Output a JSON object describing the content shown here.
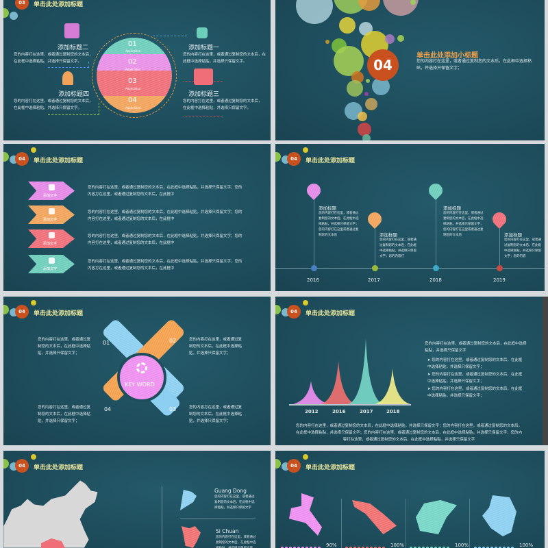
{
  "colors": {
    "bg": "#1e4d5c",
    "badge": "#c9501f",
    "title": "#e9e59b",
    "pink": "#ee8ff0",
    "orange": "#f4a04c",
    "red": "#f07070",
    "teal": "#76d6c6",
    "blue": "#8ccff0",
    "yellow": "#f3ee8a"
  },
  "header_title": "单击此处添加标题",
  "slide1": {
    "badge": "03",
    "bands": [
      {
        "num": "01",
        "sub": "Application"
      },
      {
        "num": "02",
        "sub": "Application"
      },
      {
        "num": "03",
        "sub": "Application"
      },
      {
        "num": "04",
        "sub": "Application"
      }
    ],
    "items": [
      {
        "title": "添加标题一",
        "icon": "people-exchange-icon"
      },
      {
        "title": "添加标题二",
        "icon": "presentation-icon"
      },
      {
        "title": "添加标题三",
        "icon": "computer-icon"
      },
      {
        "title": "添加标题四",
        "icon": "head-idea-icon"
      }
    ],
    "body": "您的内容打在这里，或者通过复制您的文本后，在此框中选择粘贴，并选择只保留文字。"
  },
  "slide2": {
    "badge": "04",
    "subtitle": "单击此处添加小标题",
    "body": "您的内容打在这里，或者通过复制您的文本后，在此框中选择粘贴，并选择只保留文字；"
  },
  "slide3": {
    "badge": "04",
    "arrows": [
      {
        "label": "添加文字",
        "icon": "android-icon"
      },
      {
        "label": "添加文字",
        "icon": "user-card-icon"
      },
      {
        "label": "添加文字",
        "icon": "monitor-icon"
      },
      {
        "label": "添加文字",
        "icon": "devices-icon"
      }
    ],
    "body": "您的内容打在这里，或者通过复制您的文本后，在此框中选择粘贴，并选择只保留文字；您的内容打在这里，或者通过复制您的文本后，在此框中"
  },
  "slide4": {
    "badge": "04",
    "events": [
      {
        "year": "2016",
        "title": "添加标题",
        "body": "您的内容打在这里，或者通过复制您的文本后，在此框中选择粘贴，并选择只保留文字；您的内容打在这里或者通过复制您的文本后",
        "icon": "list-icon"
      },
      {
        "year": "2017",
        "title": "添加标题",
        "body": "您的内容打在这里，或者通过复制您的文本后，在此框中选择粘贴，并选择只保留文字；您的内容打",
        "icon": "phone-icon"
      },
      {
        "year": "2018",
        "title": "添加标题",
        "body": "您的内容打在这里，或者通过复制您的文本后，在此框中选择粘贴，并选择只保留文字；您的内容打在这里或者通过复制您的文本后",
        "icon": "share-icon"
      },
      {
        "year": "2019",
        "title": "添加标题",
        "body": "您的内容打在这里，或者通过复制您的文本后，在此框中选择粘贴，并选择只保留文字；您的内容",
        "icon": "lightbulb-icon"
      }
    ]
  },
  "slide5": {
    "badge": "04",
    "keyword": "KEY WORD",
    "nums": [
      "01",
      "02",
      "03",
      "04"
    ],
    "body": "您的内容打在这里，或者通过复制您的文本后，在此框中选择粘贴，并选择只保留文字；"
  },
  "slide6": {
    "badge": "04",
    "peaks": [
      {
        "label": "2012",
        "level": 0.35
      },
      {
        "label": "2016",
        "level": 0.66
      },
      {
        "label": "2017",
        "level": 1.0
      },
      {
        "label": "2018",
        "level": 0.54
      }
    ],
    "intro": "您的内容打在这里，或者通过复制您的文本后，在此框中选择粘贴，并选择只保留文字",
    "bullets": [
      "您的内容打在这里，或者通过复制您的文本后，在此框中选择粘贴，并选择只保留文字；",
      "您的内容打在这里，或者通过复制您的文本后，在此框中选择粘贴，并选择只保留文字；",
      "您的内容打在这里，或者通过复制您的文本后，在此框中选择粘贴，并选择只保留文字；"
    ],
    "footer": "您的内容打在这里，或者通过复制您的文本后，在此框中选择粘贴，并选择只保留文字；您的内容打在这里，或者通过复制您的文本后，在此框中选择粘贴，并选择只保留文字；您的内容打在这里，或者通过复制您的文本后，在此框中选择粘贴，并选择只保留文字；您的内容打在这里，或者通过复制您的文本后，在此框中选择粘贴，并选择只保留文字"
  },
  "slide7": {
    "badge": "04",
    "regions": [
      {
        "name": "Guang Dong"
      },
      {
        "name": "Si Chuan"
      }
    ],
    "body": "您的内容打在这里，或者通过复制您的文本后，在此框中选择粘贴，并选择只保留文字"
  },
  "slide8": {
    "badge": "04",
    "stats": [
      "90%",
      "100%",
      "100%",
      "100%"
    ]
  }
}
